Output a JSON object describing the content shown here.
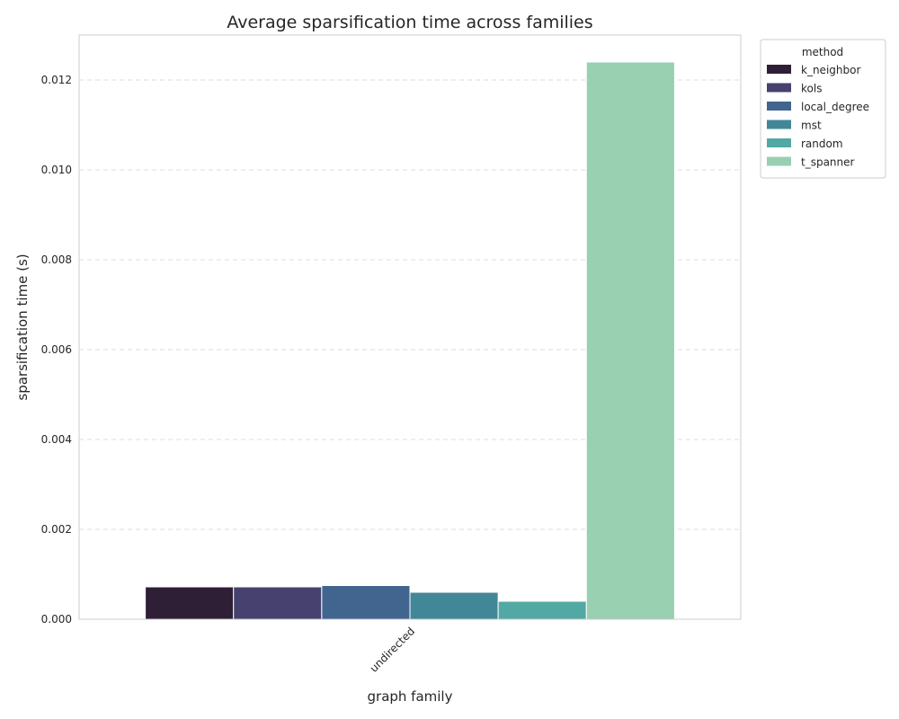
{
  "chart_data": {
    "type": "bar",
    "title": "Average sparsification time across families",
    "xlabel": "graph family",
    "ylabel": "sparsification time (s)",
    "categories": [
      "undirected"
    ],
    "ylim": [
      0,
      0.013
    ],
    "yticks": [
      "0.000",
      "0.002",
      "0.004",
      "0.006",
      "0.008",
      "0.010",
      "0.012"
    ],
    "grid": "y-dashed",
    "legend": {
      "title": "method",
      "placement": "outside upper-right"
    },
    "series": [
      {
        "name": "k_neighbor",
        "color": "#2e1f36",
        "values": [
          0.00072
        ]
      },
      {
        "name": "kols",
        "color": "#47416f",
        "values": [
          0.00072
        ]
      },
      {
        "name": "local_degree",
        "color": "#426590",
        "values": [
          0.00075
        ]
      },
      {
        "name": "mst",
        "color": "#428797",
        "values": [
          0.0006
        ]
      },
      {
        "name": "random",
        "color": "#52a8a2",
        "values": [
          0.0004
        ]
      },
      {
        "name": "t_spanner",
        "color": "#98d0b1",
        "values": [
          0.0124
        ]
      }
    ]
  }
}
